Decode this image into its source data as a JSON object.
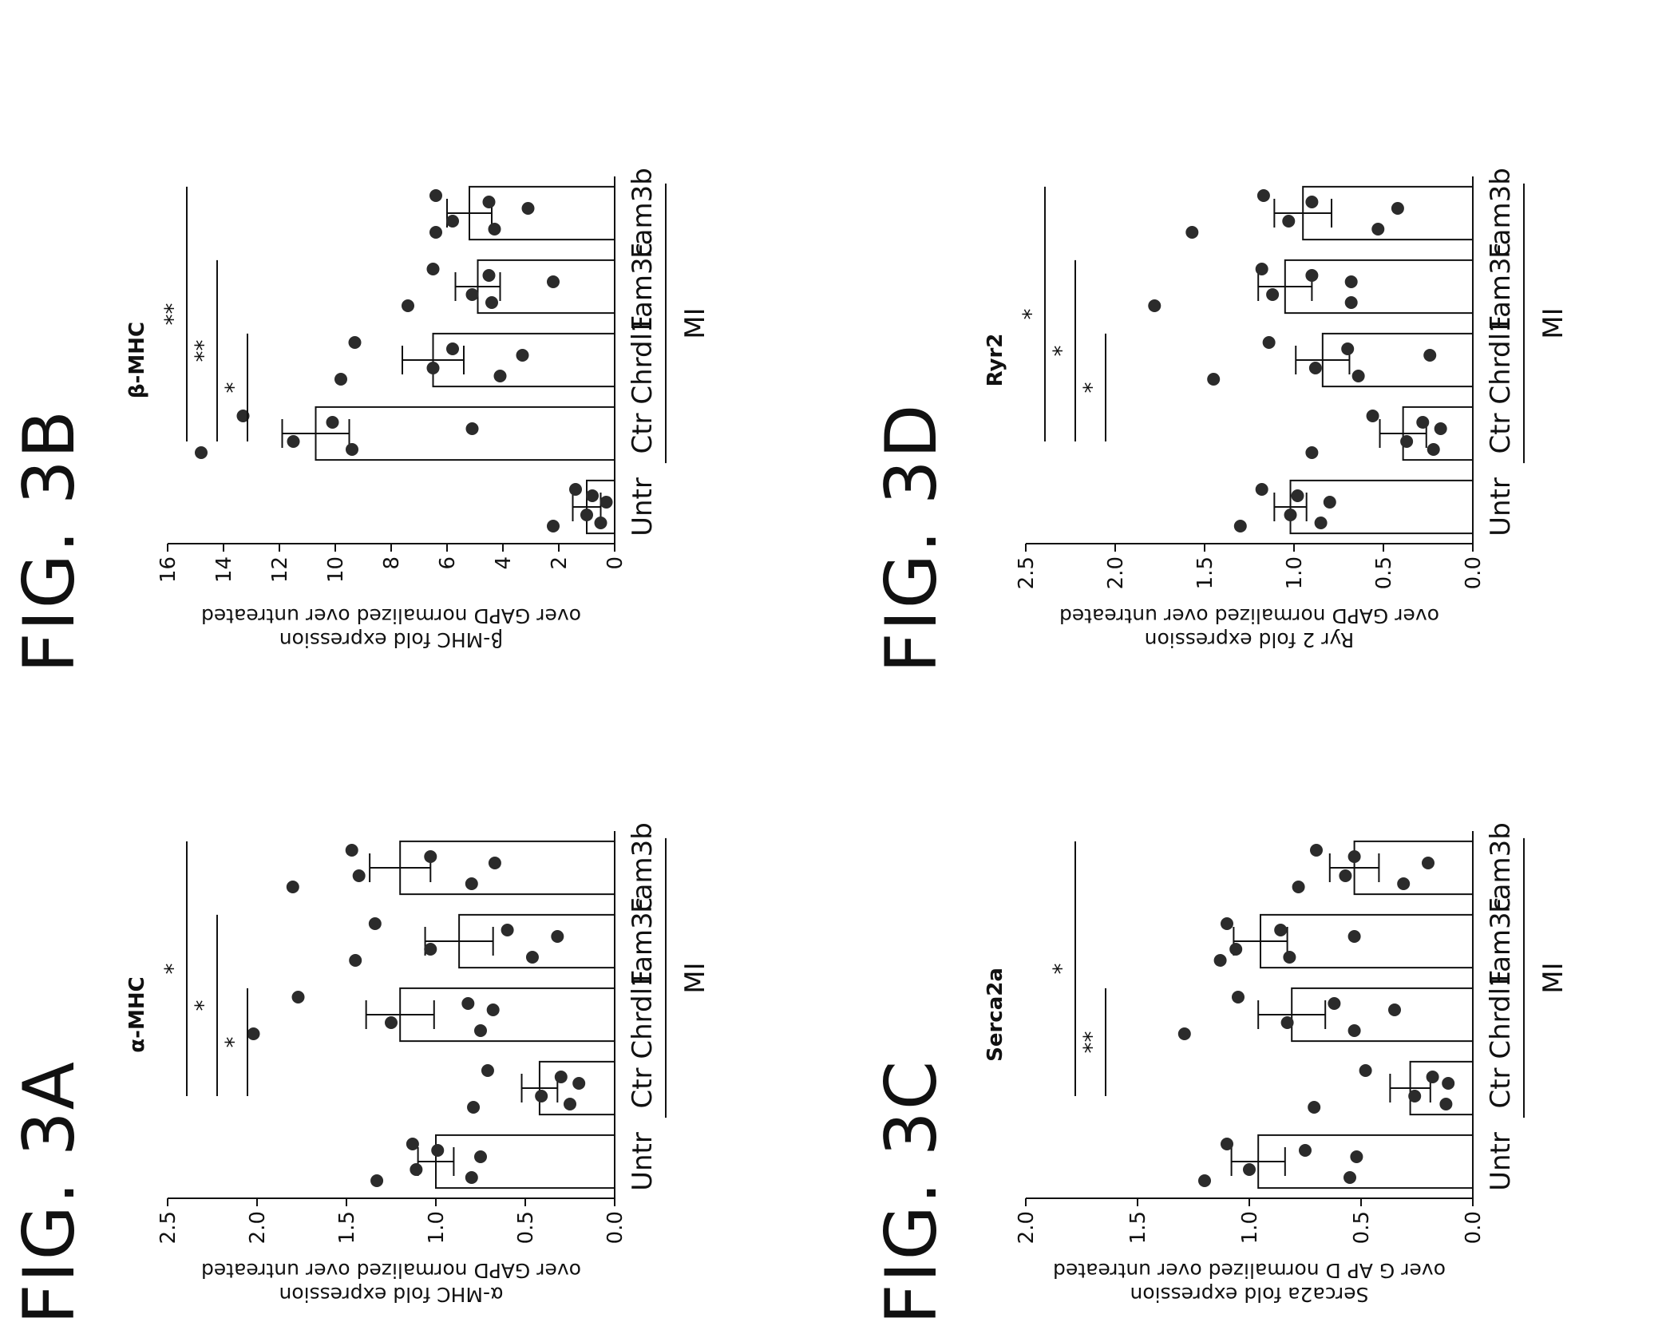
{
  "figures": [
    {
      "fig_label": "FIG. 3A",
      "chart_data": {
        "type": "bar",
        "title": "α-MHC",
        "ylabel_lines": [
          "α-MHC fold expression",
          "over GAPD normalized over untreated"
        ],
        "ylim": [
          0,
          2.5
        ],
        "yticks": [
          "0.0",
          "0.5",
          "1.0",
          "1.5",
          "2.0",
          "2.5"
        ],
        "categories": [
          "Untr",
          "Ctr",
          "Chrdl1",
          "Fam3c",
          "Fam3b"
        ],
        "group_label": "MI",
        "values": [
          1.0,
          0.42,
          1.2,
          0.87,
          1.2
        ],
        "errors": [
          0.1,
          0.1,
          0.19,
          0.19,
          0.17
        ],
        "points": [
          [
            1.33,
            1.13,
            1.11,
            0.99,
            0.8,
            0.75
          ],
          [
            0.79,
            0.71,
            0.41,
            0.3,
            0.25,
            0.2
          ],
          [
            2.02,
            1.77,
            1.25,
            0.82,
            0.75,
            0.68
          ],
          [
            1.45,
            1.34,
            1.03,
            0.6,
            0.46,
            0.32
          ],
          [
            1.8,
            1.47,
            1.43,
            1.03,
            0.8,
            0.67
          ]
        ],
        "significance": [
          {
            "from": 1,
            "to": 2,
            "label": "*"
          },
          {
            "from": 1,
            "to": 3,
            "label": "*"
          },
          {
            "from": 1,
            "to": 4,
            "label": "*"
          }
        ]
      }
    },
    {
      "fig_label": "FIG. 3B",
      "chart_data": {
        "type": "bar",
        "title": "β-MHC",
        "ylabel_lines": [
          "β-MHC fold expression",
          "over GAPD normalized over untreated"
        ],
        "ylim": [
          0,
          16
        ],
        "yticks": [
          "0",
          "2",
          "4",
          "6",
          "8",
          "10",
          "12",
          "14",
          "16"
        ],
        "categories": [
          "Untr",
          "Ctr",
          "Chrdl1",
          "Fam3c",
          "Fam3b"
        ],
        "group_label": "MI",
        "values": [
          1.0,
          10.7,
          6.5,
          4.9,
          5.2
        ],
        "errors": [
          0.5,
          1.2,
          1.1,
          0.8,
          0.8
        ],
        "points": [
          [
            2.2,
            1.4,
            1.0,
            0.8,
            0.5,
            0.3
          ],
          [
            14.8,
            13.3,
            11.5,
            10.1,
            9.4,
            5.1
          ],
          [
            9.8,
            9.3,
            6.5,
            5.8,
            4.1,
            3.3
          ],
          [
            7.4,
            6.5,
            5.1,
            4.5,
            4.4,
            2.2
          ],
          [
            6.4,
            6.4,
            5.8,
            4.5,
            4.3,
            3.1
          ]
        ],
        "significance": [
          {
            "from": 1,
            "to": 2,
            "label": "*"
          },
          {
            "from": 1,
            "to": 3,
            "label": "**"
          },
          {
            "from": 1,
            "to": 4,
            "label": "**"
          }
        ]
      }
    },
    {
      "fig_label": "FIG. 3C",
      "chart_data": {
        "type": "bar",
        "title": "Serca2a",
        "ylabel_lines": [
          "Serca2a fold expression",
          "over G AP D normalized over untreated"
        ],
        "ylim": [
          0,
          2.0
        ],
        "yticks": [
          "0.0",
          "0.5",
          "1.0",
          "1.5",
          "2.0"
        ],
        "categories": [
          "Untr",
          "Ctr",
          "Chrdl1",
          "Fam3c",
          "Fam3b"
        ],
        "group_label": "MI",
        "values": [
          0.96,
          0.28,
          0.81,
          0.95,
          0.53
        ],
        "errors": [
          0.12,
          0.09,
          0.15,
          0.12,
          0.11
        ],
        "points": [
          [
            1.2,
            1.1,
            1.0,
            0.75,
            0.55,
            0.52
          ],
          [
            0.71,
            0.48,
            0.26,
            0.18,
            0.12,
            0.11
          ],
          [
            1.29,
            1.05,
            0.83,
            0.62,
            0.53,
            0.35
          ],
          [
            1.13,
            1.1,
            1.06,
            0.86,
            0.82,
            0.53
          ],
          [
            0.78,
            0.7,
            0.57,
            0.53,
            0.31,
            0.2
          ]
        ],
        "significance": [
          {
            "from": 1,
            "to": 2,
            "label": "**"
          },
          {
            "from": 1,
            "to": 4,
            "label": "*"
          }
        ]
      }
    },
    {
      "fig_label": "FIG. 3D",
      "chart_data": {
        "type": "bar",
        "title": "Ryr2",
        "ylabel_lines": [
          "Ryr 2 fold expression",
          "over GAPD normalized over untreated"
        ],
        "ylim": [
          0,
          2.5
        ],
        "yticks": [
          "0.0",
          "0.5",
          "1.0",
          "1.5",
          "2.0",
          "2.5"
        ],
        "categories": [
          "Untr",
          "Ctr",
          "Chrdl1",
          "Fam3c",
          "Fam3b"
        ],
        "group_label": "MI",
        "values": [
          1.02,
          0.39,
          0.84,
          1.05,
          0.95
        ],
        "errors": [
          0.09,
          0.13,
          0.15,
          0.15,
          0.16
        ],
        "points": [
          [
            1.3,
            1.18,
            1.02,
            0.98,
            0.85,
            0.8
          ],
          [
            0.9,
            0.56,
            0.37,
            0.28,
            0.22,
            0.18
          ],
          [
            1.45,
            1.14,
            0.88,
            0.7,
            0.64,
            0.24
          ],
          [
            1.78,
            1.18,
            1.12,
            0.9,
            0.68,
            0.68
          ],
          [
            1.57,
            1.17,
            1.03,
            0.9,
            0.53,
            0.42
          ]
        ],
        "significance": [
          {
            "from": 1,
            "to": 2,
            "label": "*"
          },
          {
            "from": 1,
            "to": 3,
            "label": "*"
          },
          {
            "from": 1,
            "to": 4,
            "label": "*"
          }
        ]
      }
    }
  ]
}
